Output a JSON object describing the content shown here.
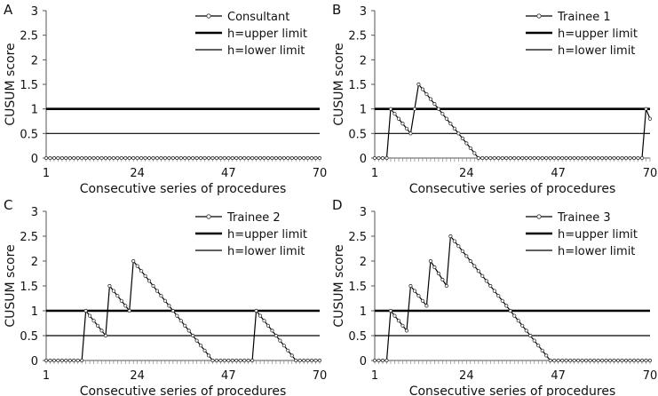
{
  "chart_data": [
    {
      "panel_label": "A",
      "type": "line",
      "xlabel": "Consecutive series of procedures",
      "ylabel": "CUSUM score",
      "xlim": [
        1,
        70
      ],
      "ylim": [
        0,
        3
      ],
      "x_ticks": [
        1,
        24,
        47,
        70
      ],
      "y_ticks": [
        0,
        0.5,
        1,
        1.5,
        2,
        2.5,
        3
      ],
      "grid": false,
      "legend_position": "top-right",
      "thresholds": [
        {
          "name": "h=upper limit",
          "value": 1,
          "style": "thick"
        },
        {
          "name": "h=lower limit",
          "value": 0.5,
          "style": "thin"
        }
      ],
      "series": [
        {
          "name": "Consultant",
          "marker": "circle",
          "points": [
            [
              1,
              0
            ],
            [
              70,
              0
            ]
          ]
        }
      ]
    },
    {
      "panel_label": "B",
      "type": "line",
      "xlabel": "Consecutive series of procedures",
      "ylabel": "CUSUM score",
      "xlim": [
        1,
        70
      ],
      "ylim": [
        0,
        3
      ],
      "x_ticks": [
        1,
        24,
        47,
        70
      ],
      "y_ticks": [
        0,
        0.5,
        1,
        1.5,
        2,
        2.5,
        3
      ],
      "grid": false,
      "legend_position": "top-right",
      "thresholds": [
        {
          "name": "h=upper limit",
          "value": 1,
          "style": "thick"
        },
        {
          "name": "h=lower limit",
          "value": 0.5,
          "style": "thin"
        }
      ],
      "series": [
        {
          "name": "Trainee 1",
          "marker": "circle",
          "points": [
            [
              1,
              0
            ],
            [
              4,
              0
            ],
            [
              5,
              1
            ],
            [
              10,
              0.5
            ],
            [
              12,
              1.5
            ],
            [
              27,
              0
            ],
            [
              68,
              0
            ],
            [
              69,
              1
            ],
            [
              70,
              0.8
            ]
          ]
        }
      ]
    },
    {
      "panel_label": "C",
      "type": "line",
      "xlabel": "Consecutive series of procedures",
      "ylabel": "CUSUM score",
      "xlim": [
        1,
        70
      ],
      "ylim": [
        0,
        3
      ],
      "x_ticks": [
        1,
        24,
        47,
        70
      ],
      "y_ticks": [
        0,
        0.5,
        1,
        1.5,
        2,
        2.5,
        3
      ],
      "grid": false,
      "legend_position": "top-right",
      "thresholds": [
        {
          "name": "h=upper limit",
          "value": 1,
          "style": "thick"
        },
        {
          "name": "h=lower limit",
          "value": 0.5,
          "style": "thin"
        }
      ],
      "series": [
        {
          "name": "Trainee 2",
          "marker": "circle",
          "points": [
            [
              1,
              0
            ],
            [
              10,
              0
            ],
            [
              11,
              1
            ],
            [
              16,
              0.5
            ],
            [
              17,
              1.5
            ],
            [
              22,
              1
            ],
            [
              23,
              2
            ],
            [
              43,
              0
            ],
            [
              53,
              0
            ],
            [
              54,
              1
            ],
            [
              64,
              0
            ],
            [
              70,
              0
            ]
          ]
        }
      ]
    },
    {
      "panel_label": "D",
      "type": "line",
      "xlabel": "Consecutive series of procedures",
      "ylabel": "CUSUM score",
      "xlim": [
        1,
        70
      ],
      "ylim": [
        0,
        3
      ],
      "x_ticks": [
        1,
        24,
        47,
        70
      ],
      "y_ticks": [
        0,
        0.5,
        1,
        1.5,
        2,
        2.5,
        3
      ],
      "grid": false,
      "legend_position": "top-right",
      "thresholds": [
        {
          "name": "h=upper limit",
          "value": 1,
          "style": "thick"
        },
        {
          "name": "h=lower limit",
          "value": 0.5,
          "style": "thin"
        }
      ],
      "series": [
        {
          "name": "Trainee 3",
          "marker": "circle",
          "points": [
            [
              1,
              0
            ],
            [
              4,
              0
            ],
            [
              5,
              1
            ],
            [
              9,
              0.6
            ],
            [
              10,
              1.5
            ],
            [
              14,
              1.1
            ],
            [
              15,
              2
            ],
            [
              19,
              1.5
            ],
            [
              20,
              2.5
            ],
            [
              45,
              0
            ],
            [
              70,
              0
            ]
          ]
        }
      ]
    }
  ]
}
